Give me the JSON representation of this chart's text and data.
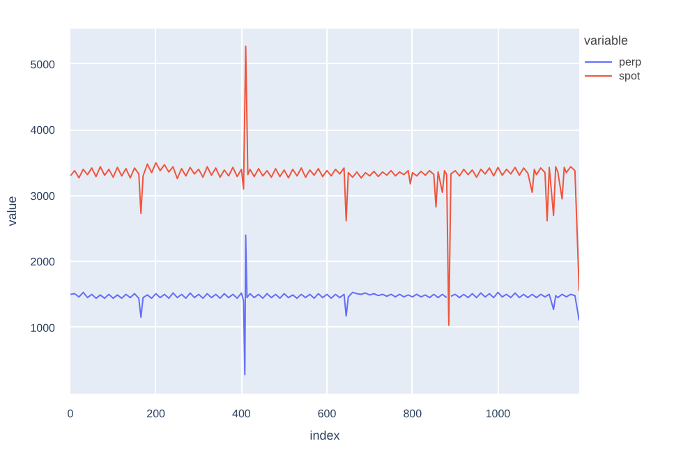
{
  "chart_data": {
    "type": "line",
    "xlabel": "index",
    "ylabel": "value",
    "legend_title": "variable",
    "legend": "top right",
    "grid": true,
    "xlim": [
      0,
      1190
    ],
    "ylim": [
      -10,
      5540
    ],
    "xticks": [
      0,
      200,
      400,
      600,
      800,
      1000
    ],
    "yticks": [
      1000,
      2000,
      3000,
      4000,
      5000
    ],
    "series": [
      {
        "name": "perp",
        "color": "#636efa",
        "x": [
          0,
          10,
          20,
          30,
          40,
          50,
          60,
          70,
          80,
          90,
          100,
          110,
          120,
          130,
          140,
          150,
          160,
          165,
          170,
          180,
          190,
          200,
          210,
          220,
          230,
          240,
          250,
          260,
          270,
          280,
          290,
          300,
          310,
          320,
          330,
          340,
          350,
          360,
          370,
          380,
          390,
          400,
          405,
          408,
          410,
          413,
          420,
          430,
          440,
          450,
          460,
          470,
          480,
          490,
          500,
          510,
          520,
          530,
          540,
          550,
          560,
          570,
          580,
          590,
          600,
          610,
          620,
          630,
          640,
          645,
          650,
          660,
          670,
          680,
          690,
          700,
          710,
          720,
          730,
          740,
          750,
          760,
          770,
          780,
          790,
          800,
          810,
          820,
          830,
          840,
          850,
          860,
          870,
          880,
          885,
          890,
          900,
          910,
          920,
          930,
          940,
          950,
          960,
          970,
          980,
          990,
          1000,
          1010,
          1020,
          1030,
          1040,
          1050,
          1060,
          1070,
          1080,
          1090,
          1100,
          1110,
          1120,
          1130,
          1135,
          1140,
          1150,
          1160,
          1170,
          1180,
          1190
        ],
        "values": [
          1500,
          1510,
          1460,
          1530,
          1450,
          1500,
          1440,
          1490,
          1440,
          1500,
          1440,
          1490,
          1440,
          1500,
          1450,
          1510,
          1440,
          1150,
          1450,
          1490,
          1440,
          1510,
          1450,
          1500,
          1440,
          1520,
          1450,
          1500,
          1440,
          1520,
          1450,
          1500,
          1440,
          1510,
          1450,
          1500,
          1440,
          1510,
          1450,
          1500,
          1440,
          1520,
          1400,
          280,
          2400,
          1450,
          1510,
          1450,
          1500,
          1440,
          1510,
          1450,
          1500,
          1440,
          1510,
          1450,
          1490,
          1440,
          1500,
          1450,
          1500,
          1440,
          1510,
          1450,
          1500,
          1440,
          1500,
          1450,
          1500,
          1170,
          1460,
          1530,
          1510,
          1500,
          1520,
          1490,
          1510,
          1480,
          1500,
          1470,
          1500,
          1460,
          1500,
          1460,
          1490,
          1460,
          1500,
          1460,
          1490,
          1450,
          1500,
          1450,
          1500,
          1450,
          null,
          1470,
          1500,
          1450,
          1500,
          1450,
          1510,
          1450,
          1520,
          1460,
          1510,
          1450,
          1530,
          1460,
          1500,
          1450,
          1520,
          1450,
          1500,
          1450,
          1500,
          1450,
          1500,
          1460,
          1500,
          1270,
          1480,
          1450,
          1500,
          1460,
          1500,
          1480,
          1100
        ]
      },
      {
        "name": "spot",
        "color": "#ef553b",
        "x": [
          0,
          10,
          20,
          30,
          40,
          50,
          60,
          70,
          80,
          90,
          100,
          110,
          120,
          130,
          140,
          150,
          160,
          165,
          170,
          180,
          190,
          200,
          210,
          220,
          230,
          240,
          250,
          260,
          270,
          280,
          290,
          300,
          310,
          320,
          330,
          340,
          350,
          360,
          370,
          380,
          390,
          400,
          405,
          410,
          415,
          420,
          430,
          440,
          450,
          460,
          470,
          480,
          490,
          500,
          510,
          520,
          530,
          540,
          550,
          560,
          570,
          580,
          590,
          600,
          610,
          620,
          630,
          640,
          645,
          650,
          660,
          670,
          680,
          690,
          700,
          710,
          720,
          730,
          740,
          750,
          760,
          770,
          780,
          790,
          795,
          800,
          810,
          820,
          830,
          840,
          850,
          855,
          860,
          870,
          875,
          880,
          885,
          890,
          900,
          910,
          920,
          930,
          940,
          950,
          960,
          970,
          980,
          990,
          1000,
          1010,
          1020,
          1030,
          1040,
          1050,
          1060,
          1070,
          1080,
          1085,
          1090,
          1100,
          1110,
          1115,
          1120,
          1130,
          1135,
          1140,
          1150,
          1155,
          1160,
          1170,
          1180,
          1190
        ],
        "values": [
          3300,
          3380,
          3270,
          3400,
          3320,
          3420,
          3290,
          3440,
          3310,
          3400,
          3280,
          3430,
          3300,
          3410,
          3270,
          3420,
          3330,
          2730,
          3300,
          3480,
          3350,
          3500,
          3380,
          3470,
          3360,
          3440,
          3260,
          3410,
          3300,
          3430,
          3330,
          3400,
          3280,
          3440,
          3310,
          3420,
          3280,
          3390,
          3300,
          3430,
          3290,
          3400,
          3100,
          5270,
          3320,
          3400,
          3290,
          3410,
          3300,
          3380,
          3280,
          3410,
          3290,
          3390,
          3270,
          3400,
          3300,
          3420,
          3280,
          3390,
          3310,
          3410,
          3290,
          3380,
          3300,
          3400,
          3330,
          3420,
          2620,
          3350,
          3280,
          3360,
          3270,
          3350,
          3300,
          3370,
          3290,
          3360,
          3310,
          3380,
          3300,
          3360,
          3320,
          3380,
          3180,
          3350,
          3300,
          3370,
          3310,
          3380,
          3320,
          2830,
          3360,
          3050,
          3380,
          3320,
          1030,
          3330,
          3380,
          3300,
          3400,
          3320,
          3390,
          3280,
          3400,
          3330,
          3420,
          3300,
          3430,
          3310,
          3400,
          3330,
          3430,
          3310,
          3420,
          3340,
          3050,
          3400,
          3320,
          3420,
          3350,
          2620,
          3430,
          2700,
          3440,
          3360,
          2950,
          3430,
          3350,
          3440,
          3380,
          1550
        ]
      }
    ]
  }
}
